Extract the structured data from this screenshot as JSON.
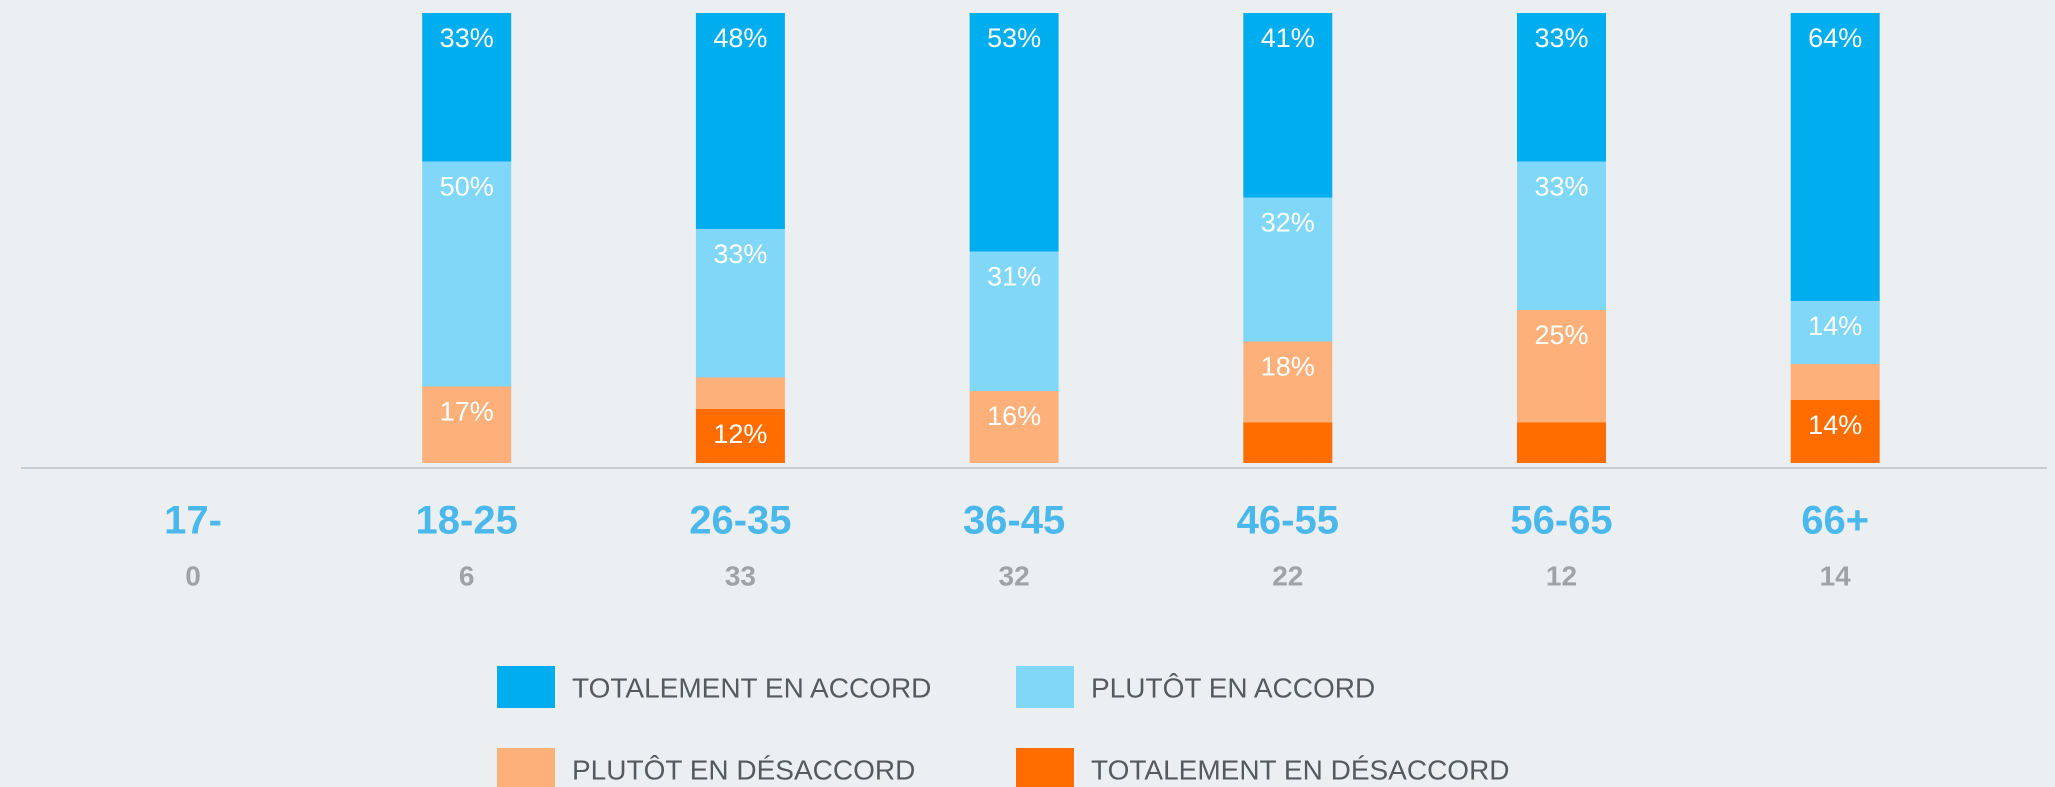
{
  "chart_data": {
    "type": "stacked_bar",
    "categories": [
      "17-",
      "18-25",
      "26-35",
      "36-45",
      "46-55",
      "56-65",
      "66+"
    ],
    "counts": [
      0,
      6,
      33,
      32,
      22,
      12,
      14
    ],
    "ylim": [
      0,
      100
    ],
    "series": [
      {
        "name": "TOTALEMENT EN ACCORD",
        "color": "#00aeef",
        "values": [
          null,
          33,
          48,
          53,
          41,
          33,
          64
        ],
        "value_labels": [
          null,
          "33%",
          "48%",
          "53%",
          "41%",
          "33%",
          "64%"
        ]
      },
      {
        "name": "PLUTÔT EN ACCORD",
        "color": "#80d7f8",
        "values": [
          null,
          50,
          33,
          31,
          32,
          33,
          14
        ],
        "value_labels": [
          null,
          "50%",
          "33%",
          "31%",
          "32%",
          "33%",
          "14%"
        ]
      },
      {
        "name": "PLUTÔT EN DÉSACCORD",
        "color": "#fdb07a",
        "values": [
          null,
          17,
          7,
          16,
          18,
          25,
          8
        ],
        "value_labels": [
          null,
          "17%",
          null,
          "16%",
          "18%",
          "25%",
          null
        ]
      },
      {
        "name": "TOTALEMENT EN DÉSACCORD",
        "color": "#ff6d00",
        "values": [
          null,
          0,
          12,
          0,
          9,
          9,
          14
        ],
        "value_labels": [
          null,
          null,
          "12%",
          null,
          null,
          null,
          "14%"
        ]
      }
    ]
  }
}
